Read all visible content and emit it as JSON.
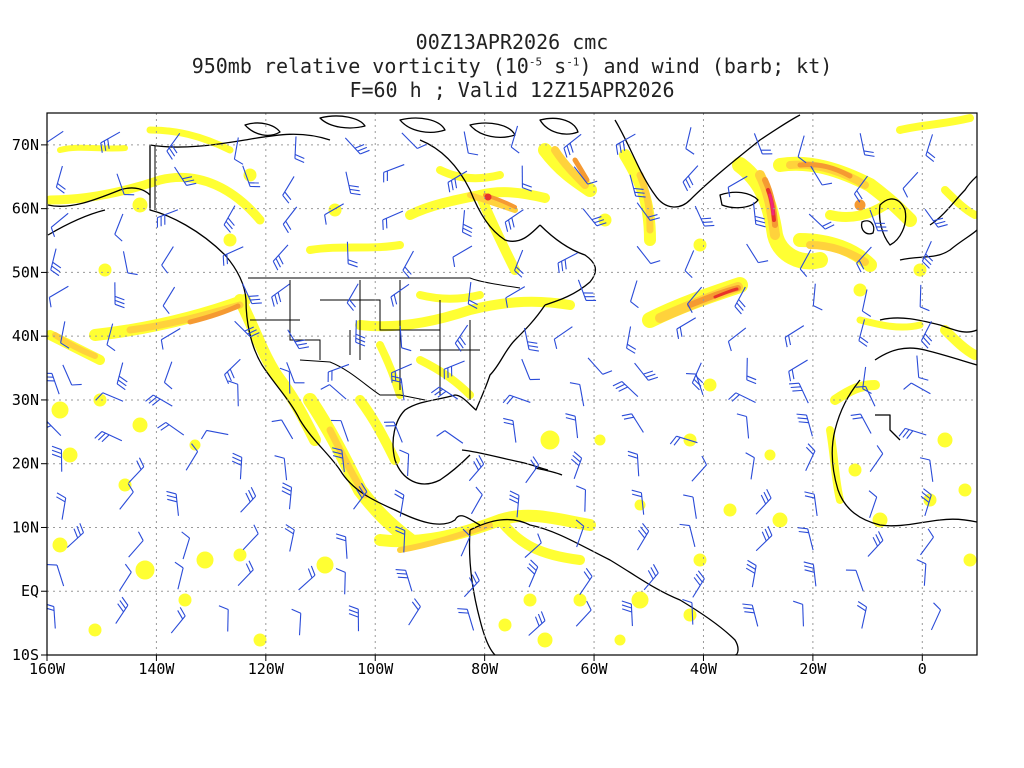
{
  "title": {
    "line1": "00Z13APR2026 cmc",
    "line2_prefix": "950mb relative vorticity (10",
    "line2_exp1": "-5",
    "line2_mid": " s",
    "line2_exp2": "-1",
    "line2_suffix": ") and wind (barb; kt)",
    "line3": "F=60 h ; Valid 12Z15APR2026"
  },
  "axes": {
    "lon_labels": [
      "160W",
      "140W",
      "120W",
      "100W",
      "80W",
      "60W",
      "40W",
      "20W",
      "0"
    ],
    "lon_values": [
      -160,
      -140,
      -120,
      -100,
      -80,
      -60,
      -40,
      -20,
      0
    ],
    "lat_labels": [
      "70N",
      "60N",
      "50N",
      "40N",
      "30N",
      "20N",
      "10N",
      "EQ",
      "10S"
    ],
    "lat_values": [
      70,
      60,
      50,
      40,
      30,
      20,
      10,
      0,
      -10
    ],
    "lon_range": [
      -160,
      10
    ],
    "lat_range": [
      -10,
      75
    ]
  },
  "colors": {
    "yellow": "#ffff33",
    "orange_light": "#ffd23c",
    "orange": "#f59a32",
    "red": "#e8322a",
    "magenta": "#f0287a",
    "barb": "#2a4bd8",
    "coast": "#000000",
    "grid": "#9a9a9a"
  }
}
